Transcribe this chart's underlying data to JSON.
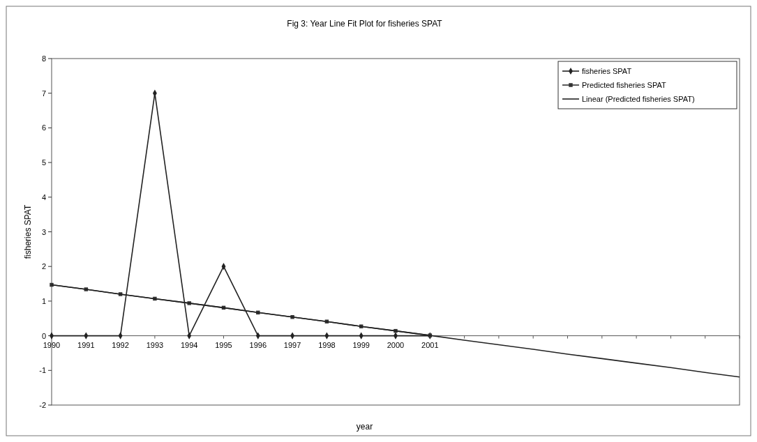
{
  "chart_data": {
    "type": "line",
    "title": "Fig 3: Year Line Fit  Plot for fisheries SPAT",
    "xlabel": "year",
    "ylabel": "fisheries SPAT",
    "categories": [
      "1990",
      "1991",
      "1992",
      "1993",
      "1994",
      "1995",
      "1996",
      "1997",
      "1998",
      "1999",
      "2000",
      "2001",
      null,
      null,
      null,
      null,
      null,
      null,
      null,
      null,
      null
    ],
    "series": [
      {
        "name": "fisheries SPAT",
        "color": "#222222",
        "marker": "diamond",
        "values": [
          0,
          0,
          0,
          7,
          0,
          2,
          0,
          0,
          0,
          0,
          0,
          0,
          null,
          null,
          null,
          null,
          null,
          null,
          null,
          null,
          null
        ]
      },
      {
        "name": "Predicted fisheries SPAT",
        "color": "#333333",
        "marker": "square",
        "values": [
          1.47,
          1.34,
          1.2,
          1.07,
          0.94,
          0.81,
          0.67,
          0.54,
          0.41,
          0.27,
          0.14,
          0.01,
          null,
          null,
          null,
          null,
          null,
          null,
          null,
          null,
          null
        ]
      },
      {
        "name": "Linear (Predicted fisheries SPAT)",
        "color": "#222222",
        "marker": "none",
        "values": [
          1.47,
          1.34,
          1.2,
          1.07,
          0.94,
          0.81,
          0.67,
          0.54,
          0.41,
          0.27,
          0.14,
          0.01,
          -0.13,
          -0.26,
          -0.39,
          -0.53,
          -0.66,
          -0.79,
          -0.92,
          -1.06,
          -1.19
        ]
      }
    ],
    "ylim": [
      -2,
      8
    ],
    "yticks": [
      -2,
      -1,
      0,
      1,
      2,
      3,
      4,
      5,
      6,
      7,
      8
    ],
    "grid": false,
    "legend": "top right"
  }
}
